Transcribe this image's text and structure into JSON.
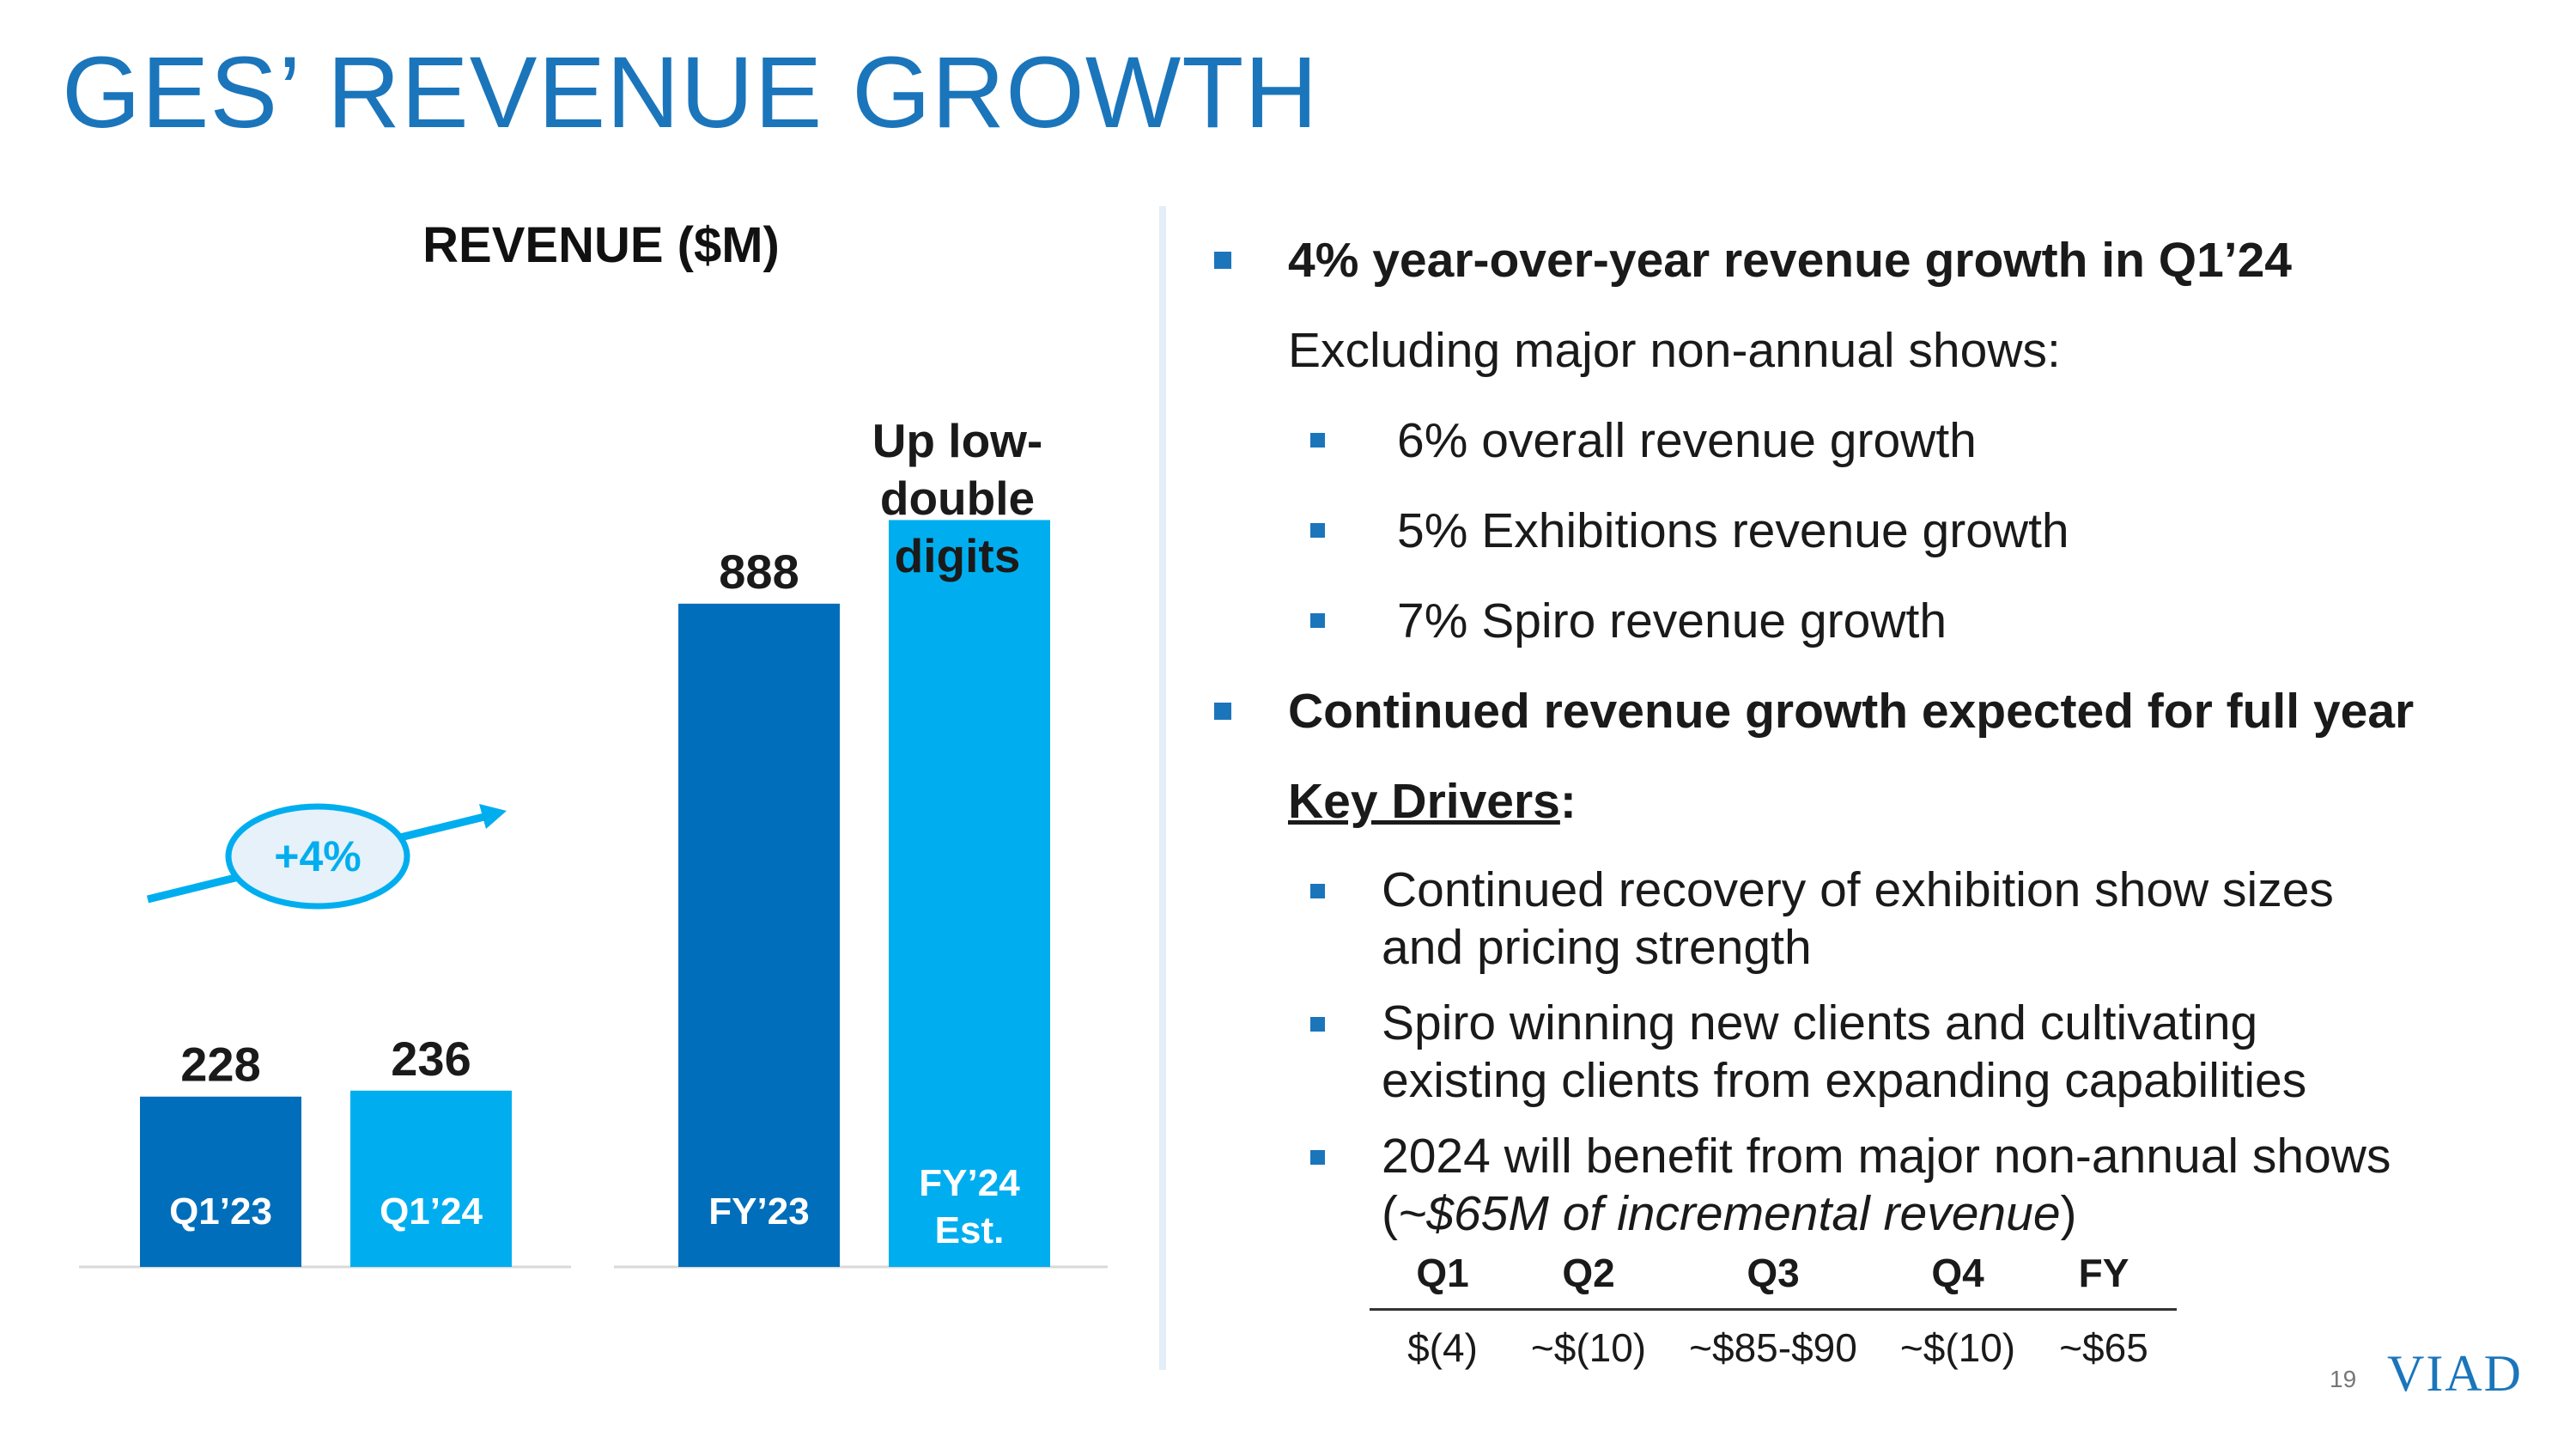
{
  "page": {
    "title": "GES’ REVENUE GROWTH",
    "page_number": "19",
    "logo_text": "VIAD"
  },
  "colors": {
    "dark_blue": "#006eba",
    "light_blue": "#00aeef",
    "title_blue": "#1b75bb",
    "bubble_fill": "#e6f1fa"
  },
  "chart_data": {
    "type": "bar",
    "title": "REVENUE ($M)",
    "categories": [
      "Q1’23",
      "Q1’24",
      "FY’23",
      "FY’24 Est."
    ],
    "values": [
      228,
      236,
      888,
      1000
    ],
    "value_labels": [
      "228",
      "236",
      "888",
      ""
    ],
    "ylim": [
      0,
      1150
    ],
    "groups": [
      {
        "categories": [
          "Q1’23",
          "Q1’24"
        ]
      },
      {
        "categories": [
          "FY’23",
          "FY’24 Est."
        ]
      }
    ],
    "annotations": {
      "growth_bubble": "+4%",
      "fy24_note": [
        "Up low-",
        "double",
        "digits"
      ]
    }
  },
  "bullets": {
    "b1": "4% year-over-year revenue growth in Q1’24",
    "excl": "Excluding major non-annual shows:",
    "sub1": "6% overall revenue growth",
    "sub2": "5% Exhibitions revenue growth",
    "sub3": "7% Spiro revenue growth",
    "b2": "Continued revenue growth expected for full year",
    "key_drivers": "Key Drivers",
    "key_colon": ":",
    "d1": [
      "Continued recovery of exhibition show sizes",
      "and pricing strength"
    ],
    "d2": [
      "Spiro winning new clients and cultivating",
      "existing clients from expanding capabilities"
    ],
    "d3_line1": "2024 will benefit from major non-annual shows",
    "d3_open": "(",
    "d3_italic": "~$65M of incremental revenue",
    "d3_close": ")"
  },
  "table": {
    "headers": [
      "Q1",
      "Q2",
      "Q3",
      "Q4",
      "FY"
    ],
    "values": [
      "$(4)",
      "~$(10)",
      "~$85-$90",
      "~$(10)",
      "~$65"
    ]
  }
}
